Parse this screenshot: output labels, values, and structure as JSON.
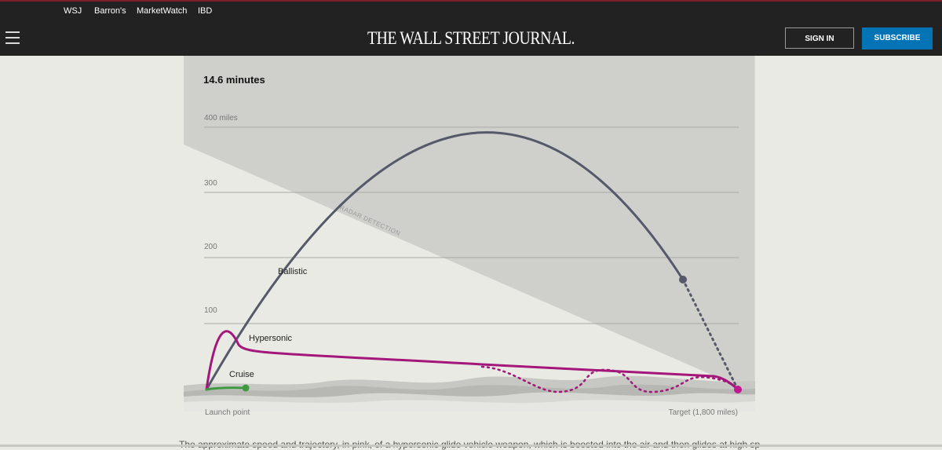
{
  "utility_nav": [
    "WSJ",
    "Barron's",
    "MarketWatch",
    "IBD"
  ],
  "header": {
    "logo": "THE WALL STREET JOURNAL.",
    "sign_in": "SIGN IN",
    "subscribe": "SUBSCRIBE"
  },
  "graphic": {
    "duration": "14.6 minutes",
    "y_ticks": [
      "400 miles",
      "300",
      "200",
      "100"
    ],
    "radar_label": "RADAR DETECTION",
    "labels": {
      "ballistic": "Ballistic",
      "hypersonic": "Hypersonic",
      "cruise": "Cruise"
    },
    "launch": "Launch point",
    "target": "Target (1,800 miles)",
    "colors": {
      "ballistic": "#55596a",
      "hypersonic": "#a3177a",
      "cruise": "#3f9a3f",
      "radar": "#cfcfcb"
    }
  },
  "caption": "The approximate speed and trajectory, in pink, of a hypersonic glide vehicle weapon, which is boosted into the air and then glides at high speeds to its"
}
